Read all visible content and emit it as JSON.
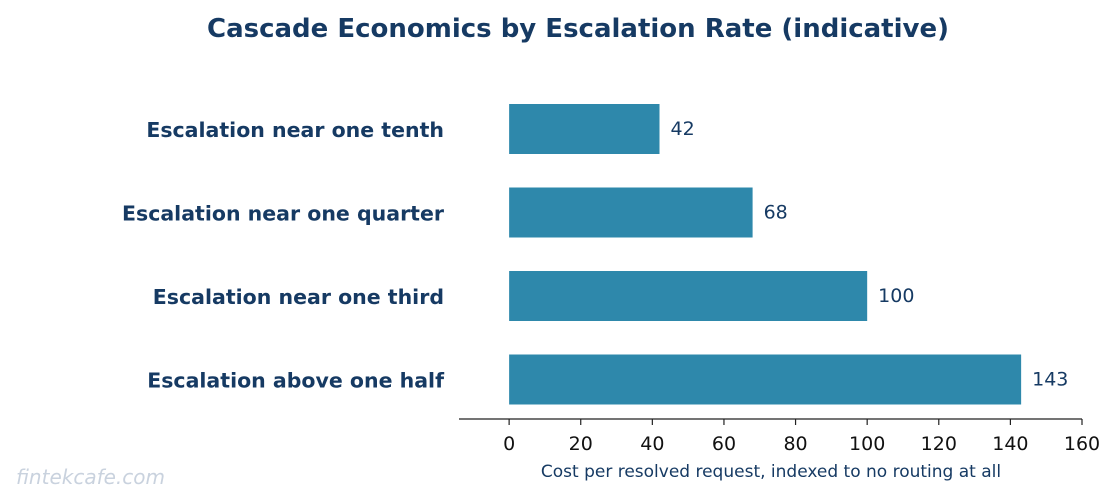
{
  "watermark": "fintekcafe.com",
  "colors": {
    "bar": "#2e88ab",
    "text": "#163a63",
    "axis": "#222222",
    "watermark": "#c9d2de"
  },
  "chart_data": {
    "type": "bar",
    "orientation": "horizontal",
    "title": "Cascade Economics by Escalation Rate (indicative)",
    "xlabel": "Cost per resolved request, indexed to no routing at all",
    "ylabel": "",
    "categories": [
      "Escalation near one tenth",
      "Escalation near one quarter",
      "Escalation near one third",
      "Escalation above one half"
    ],
    "values": [
      42,
      68,
      100,
      143
    ],
    "value_labels": [
      "42",
      "68",
      "100",
      "143"
    ],
    "xlim": [
      -14,
      160
    ],
    "xticks": [
      0,
      20,
      40,
      60,
      80,
      100,
      120,
      140,
      160
    ],
    "xtick_labels": [
      "0",
      "20",
      "40",
      "60",
      "80",
      "100",
      "120",
      "140",
      "160"
    ],
    "grid": false,
    "legend": "none"
  }
}
